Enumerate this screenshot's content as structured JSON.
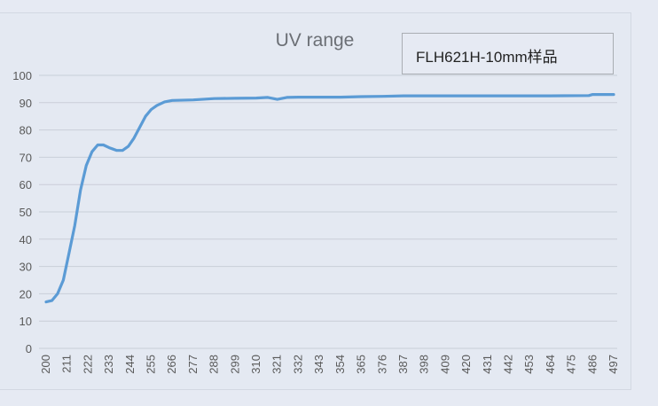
{
  "chart_data": {
    "type": "line",
    "title": "UV range",
    "annotation": "FLH621H-10mm样品",
    "xlabel": "",
    "ylabel": "",
    "xlim": [
      200,
      497
    ],
    "ylim": [
      0,
      100
    ],
    "x_ticks": [
      200,
      211,
      222,
      233,
      244,
      255,
      266,
      277,
      288,
      299,
      310,
      321,
      332,
      343,
      354,
      365,
      376,
      387,
      398,
      409,
      420,
      431,
      442,
      453,
      464,
      475,
      486,
      497
    ],
    "y_ticks": [
      0,
      10,
      20,
      30,
      40,
      50,
      60,
      70,
      80,
      90,
      100
    ],
    "grid": "horizontal",
    "line_color": "#5b9bd5",
    "series": [
      {
        "x": [
          200,
          203,
          206,
          209,
          212,
          215,
          218,
          221,
          224,
          227,
          230,
          233,
          237,
          240,
          243,
          246,
          249,
          252,
          255,
          258,
          262,
          266,
          277,
          288,
          299,
          310,
          316,
          321,
          326,
          332,
          343,
          354,
          365,
          376,
          387,
          420,
          464,
          484,
          486,
          497
        ],
        "y": [
          17,
          17.5,
          20,
          25,
          35,
          45,
          58,
          67,
          72,
          74.5,
          74.5,
          73.5,
          72.5,
          72.5,
          74,
          77,
          81,
          85,
          87.5,
          89,
          90.3,
          90.8,
          91,
          91.5,
          91.6,
          91.7,
          91.9,
          91.2,
          91.9,
          92,
          92,
          92,
          92.2,
          92.3,
          92.5,
          92.5,
          92.5,
          92.6,
          93,
          93
        ]
      }
    ]
  }
}
